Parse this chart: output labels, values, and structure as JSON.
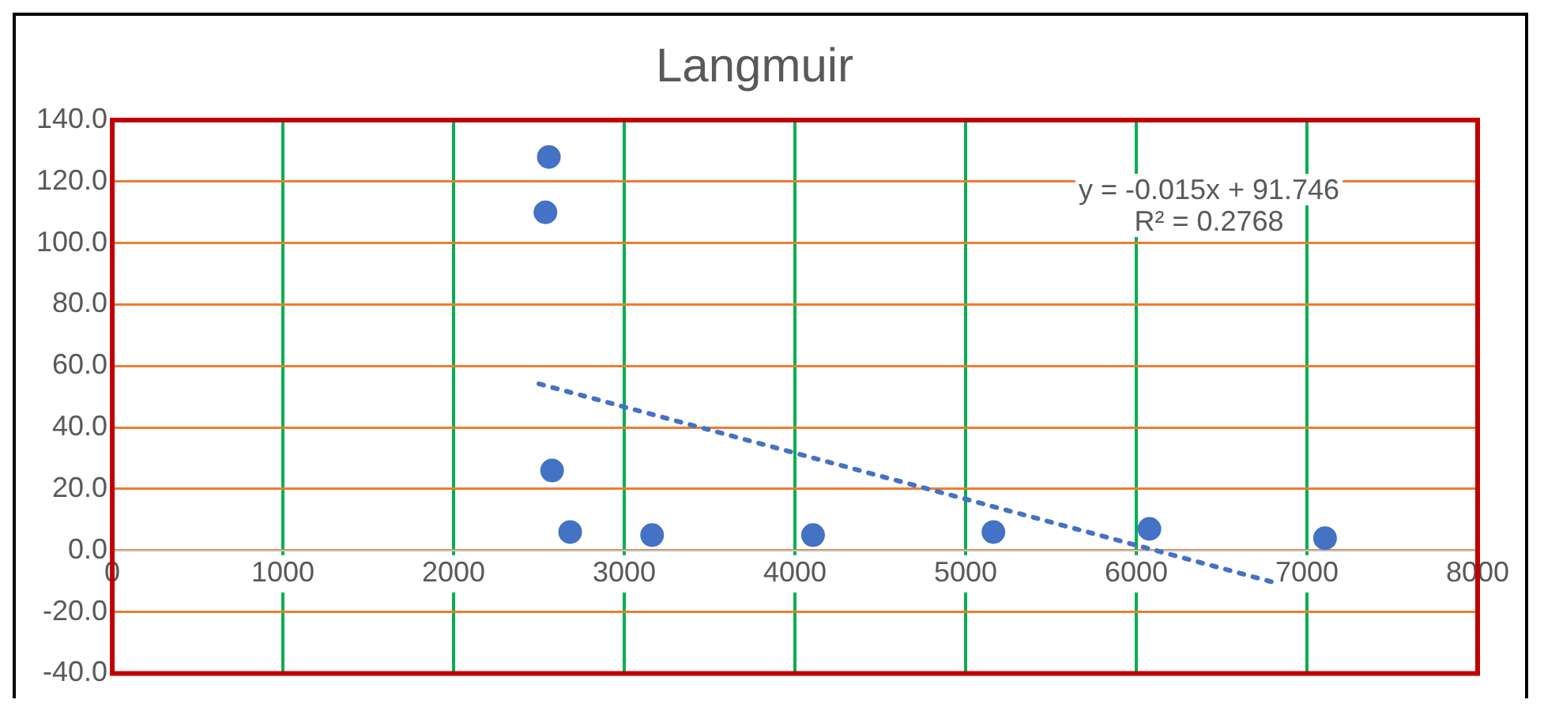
{
  "chart_data": {
    "type": "scatter",
    "title": "Langmuir",
    "series": [
      {
        "type": "scatter",
        "color": "#4472c4",
        "x": [
          2558,
          2538,
          2577,
          2683,
          3163,
          4106,
          5163,
          6077,
          7106
        ],
        "values": [
          128,
          110,
          26,
          6,
          5,
          5,
          6,
          7,
          4
        ]
      },
      {
        "type": "line",
        "color": "#4472c4",
        "x": [
          2500,
          6800
        ],
        "values": [
          54.2,
          -10.3
        ],
        "line_style": "dotted",
        "marker": "none"
      }
    ],
    "xlim": [
      0,
      8000
    ],
    "xticks": [
      0,
      1000,
      2000,
      3000,
      4000,
      5000,
      6000,
      7000,
      8000
    ],
    "ylim": [
      -40,
      140
    ],
    "yticks": [
      {
        "value": -40,
        "label": "-40.0"
      },
      {
        "value": -20,
        "label": "-20.0"
      },
      {
        "value": 0,
        "label": "0.0"
      },
      {
        "value": 20,
        "label": "20.0"
      },
      {
        "value": 40,
        "label": "40.0"
      },
      {
        "value": 60,
        "label": "60.0"
      },
      {
        "value": 80,
        "label": "80.0"
      },
      {
        "value": 100,
        "label": "100.0"
      },
      {
        "value": 120,
        "label": "120.0"
      },
      {
        "value": 140,
        "label": "140.0"
      }
    ],
    "grid": true,
    "legend": false,
    "marker": "circle",
    "annotations": [
      "y = -0.015x + 91.746",
      "R² = 0.2768"
    ]
  }
}
